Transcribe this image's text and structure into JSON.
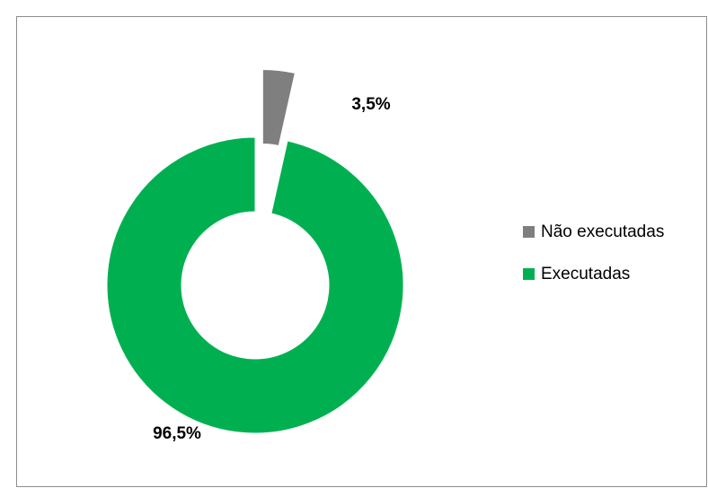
{
  "chart_data": {
    "type": "donut",
    "categories": [
      "Não executadas",
      "Executadas"
    ],
    "values": [
      3.5,
      96.5
    ],
    "value_labels": [
      "3,5%",
      "96,5%"
    ],
    "colors": [
      "#7f7f7f",
      "#00b050"
    ],
    "explode": [
      true,
      false
    ],
    "legend": "right"
  }
}
